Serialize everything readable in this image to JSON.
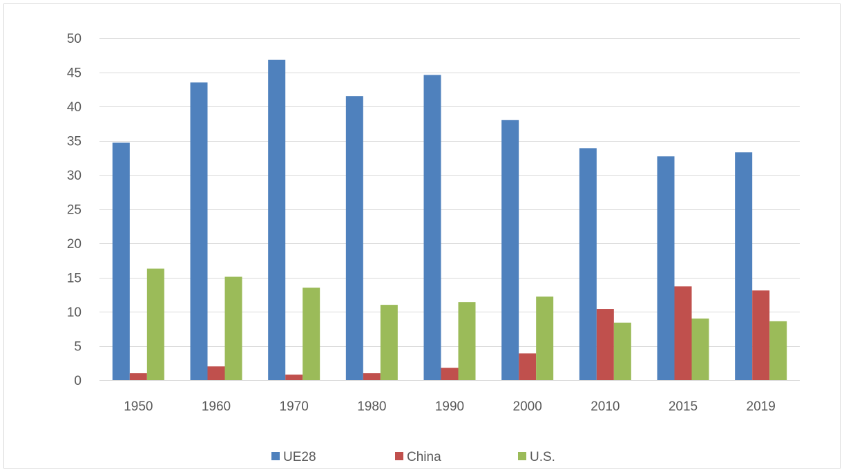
{
  "chart_data": {
    "type": "bar",
    "title": "",
    "xlabel": "",
    "ylabel": "",
    "categories": [
      "1950",
      "1960",
      "1970",
      "1980",
      "1990",
      "2000",
      "2010",
      "2015",
      "2019"
    ],
    "ylim": [
      0,
      50
    ],
    "yticks": [
      0,
      5,
      10,
      15,
      20,
      25,
      30,
      35,
      40,
      45,
      50
    ],
    "grid": true,
    "legend_position": "bottom",
    "series": [
      {
        "name": "UE28",
        "color": "#4f81bd",
        "values": [
          34.7,
          43.5,
          46.8,
          41.5,
          44.6,
          38.0,
          33.9,
          32.7,
          33.3
        ]
      },
      {
        "name": "China",
        "color": "#c0504d",
        "values": [
          1.0,
          2.0,
          0.8,
          1.0,
          1.8,
          3.9,
          10.4,
          13.7,
          13.1
        ]
      },
      {
        "name": "U.S.",
        "color": "#9bbb59",
        "values": [
          16.3,
          15.1,
          13.5,
          11.0,
          11.4,
          12.2,
          8.4,
          9.0,
          8.6
        ]
      }
    ]
  }
}
